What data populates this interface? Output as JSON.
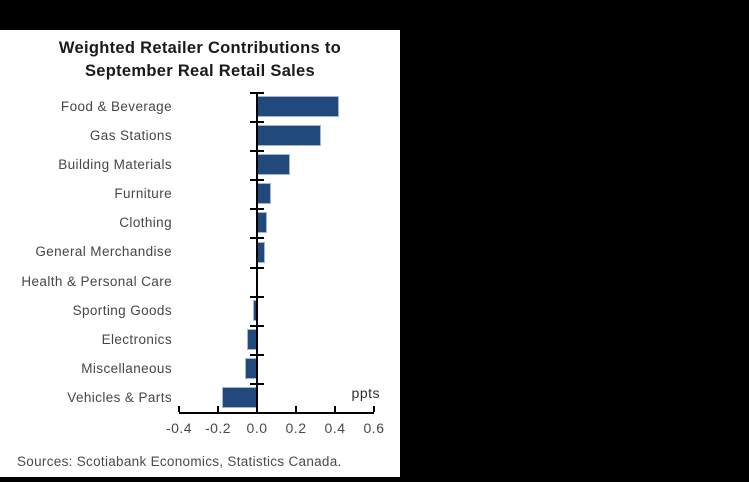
{
  "title": {
    "line1": "Weighted Retailer Contributions to",
    "line2": "September Real Retail Sales"
  },
  "source_note": "Sources: Scotiabank Economics, Statistics Canada.",
  "chart_data": {
    "type": "bar",
    "orientation": "horizontal",
    "title": "Weighted Retailer Contributions to September Real Retail Sales",
    "unit_label": "ppts",
    "xlabel": "ppts",
    "ylabel": "",
    "xlim": [
      -0.4,
      0.6
    ],
    "x_ticks": [
      -0.4,
      -0.2,
      0.0,
      0.2,
      0.4,
      0.6
    ],
    "x_tick_labels": [
      "-0.4",
      "-0.2",
      "0.0",
      "0.2",
      "0.4",
      "0.6"
    ],
    "categories": [
      "Food & Beverage",
      "Gas Stations",
      "Building Materials",
      "Furniture",
      "Clothing",
      "General Merchandise",
      "Health & Personal Care",
      "Sporting Goods",
      "Electronics",
      "Miscellaneous",
      "Vehicles & Parts"
    ],
    "values": [
      0.42,
      0.33,
      0.17,
      0.07,
      0.05,
      0.04,
      0.0,
      -0.02,
      -0.05,
      -0.06,
      -0.18
    ],
    "bar_color": "#21497B",
    "bar_edge_color": "#A3B6CE",
    "axis_color": "#000000",
    "grid": false,
    "legend": null
  },
  "frame": {
    "background": "#000000",
    "panel_background": "#FFFFFF"
  }
}
